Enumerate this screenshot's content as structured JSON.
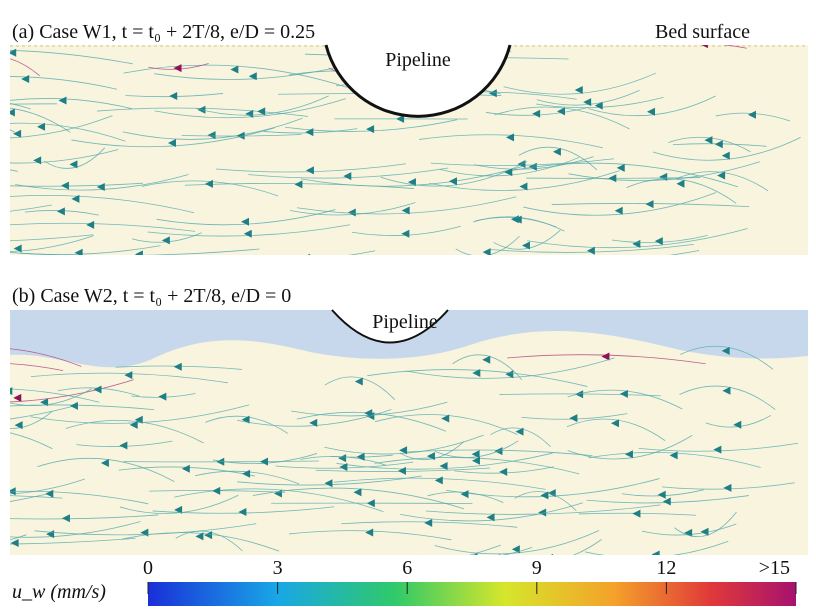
{
  "panels": [
    {
      "title": "(a) Case W1, t = t₀ + 2T/8, e/D = 0.25",
      "labels": [
        "Pipeline",
        "Bed surface"
      ]
    },
    {
      "title": "(b) Case W2, t = t₀ + 2T/8, e/D = 0",
      "labels": [
        "Pipeline"
      ]
    }
  ],
  "colorbar": {
    "label": "u_w (mm/s)",
    "range": [
      0,
      15
    ],
    "ticks": [
      0,
      3,
      6,
      9,
      12,
      {
        "value": 15,
        "label": ">15"
      }
    ]
  }
}
